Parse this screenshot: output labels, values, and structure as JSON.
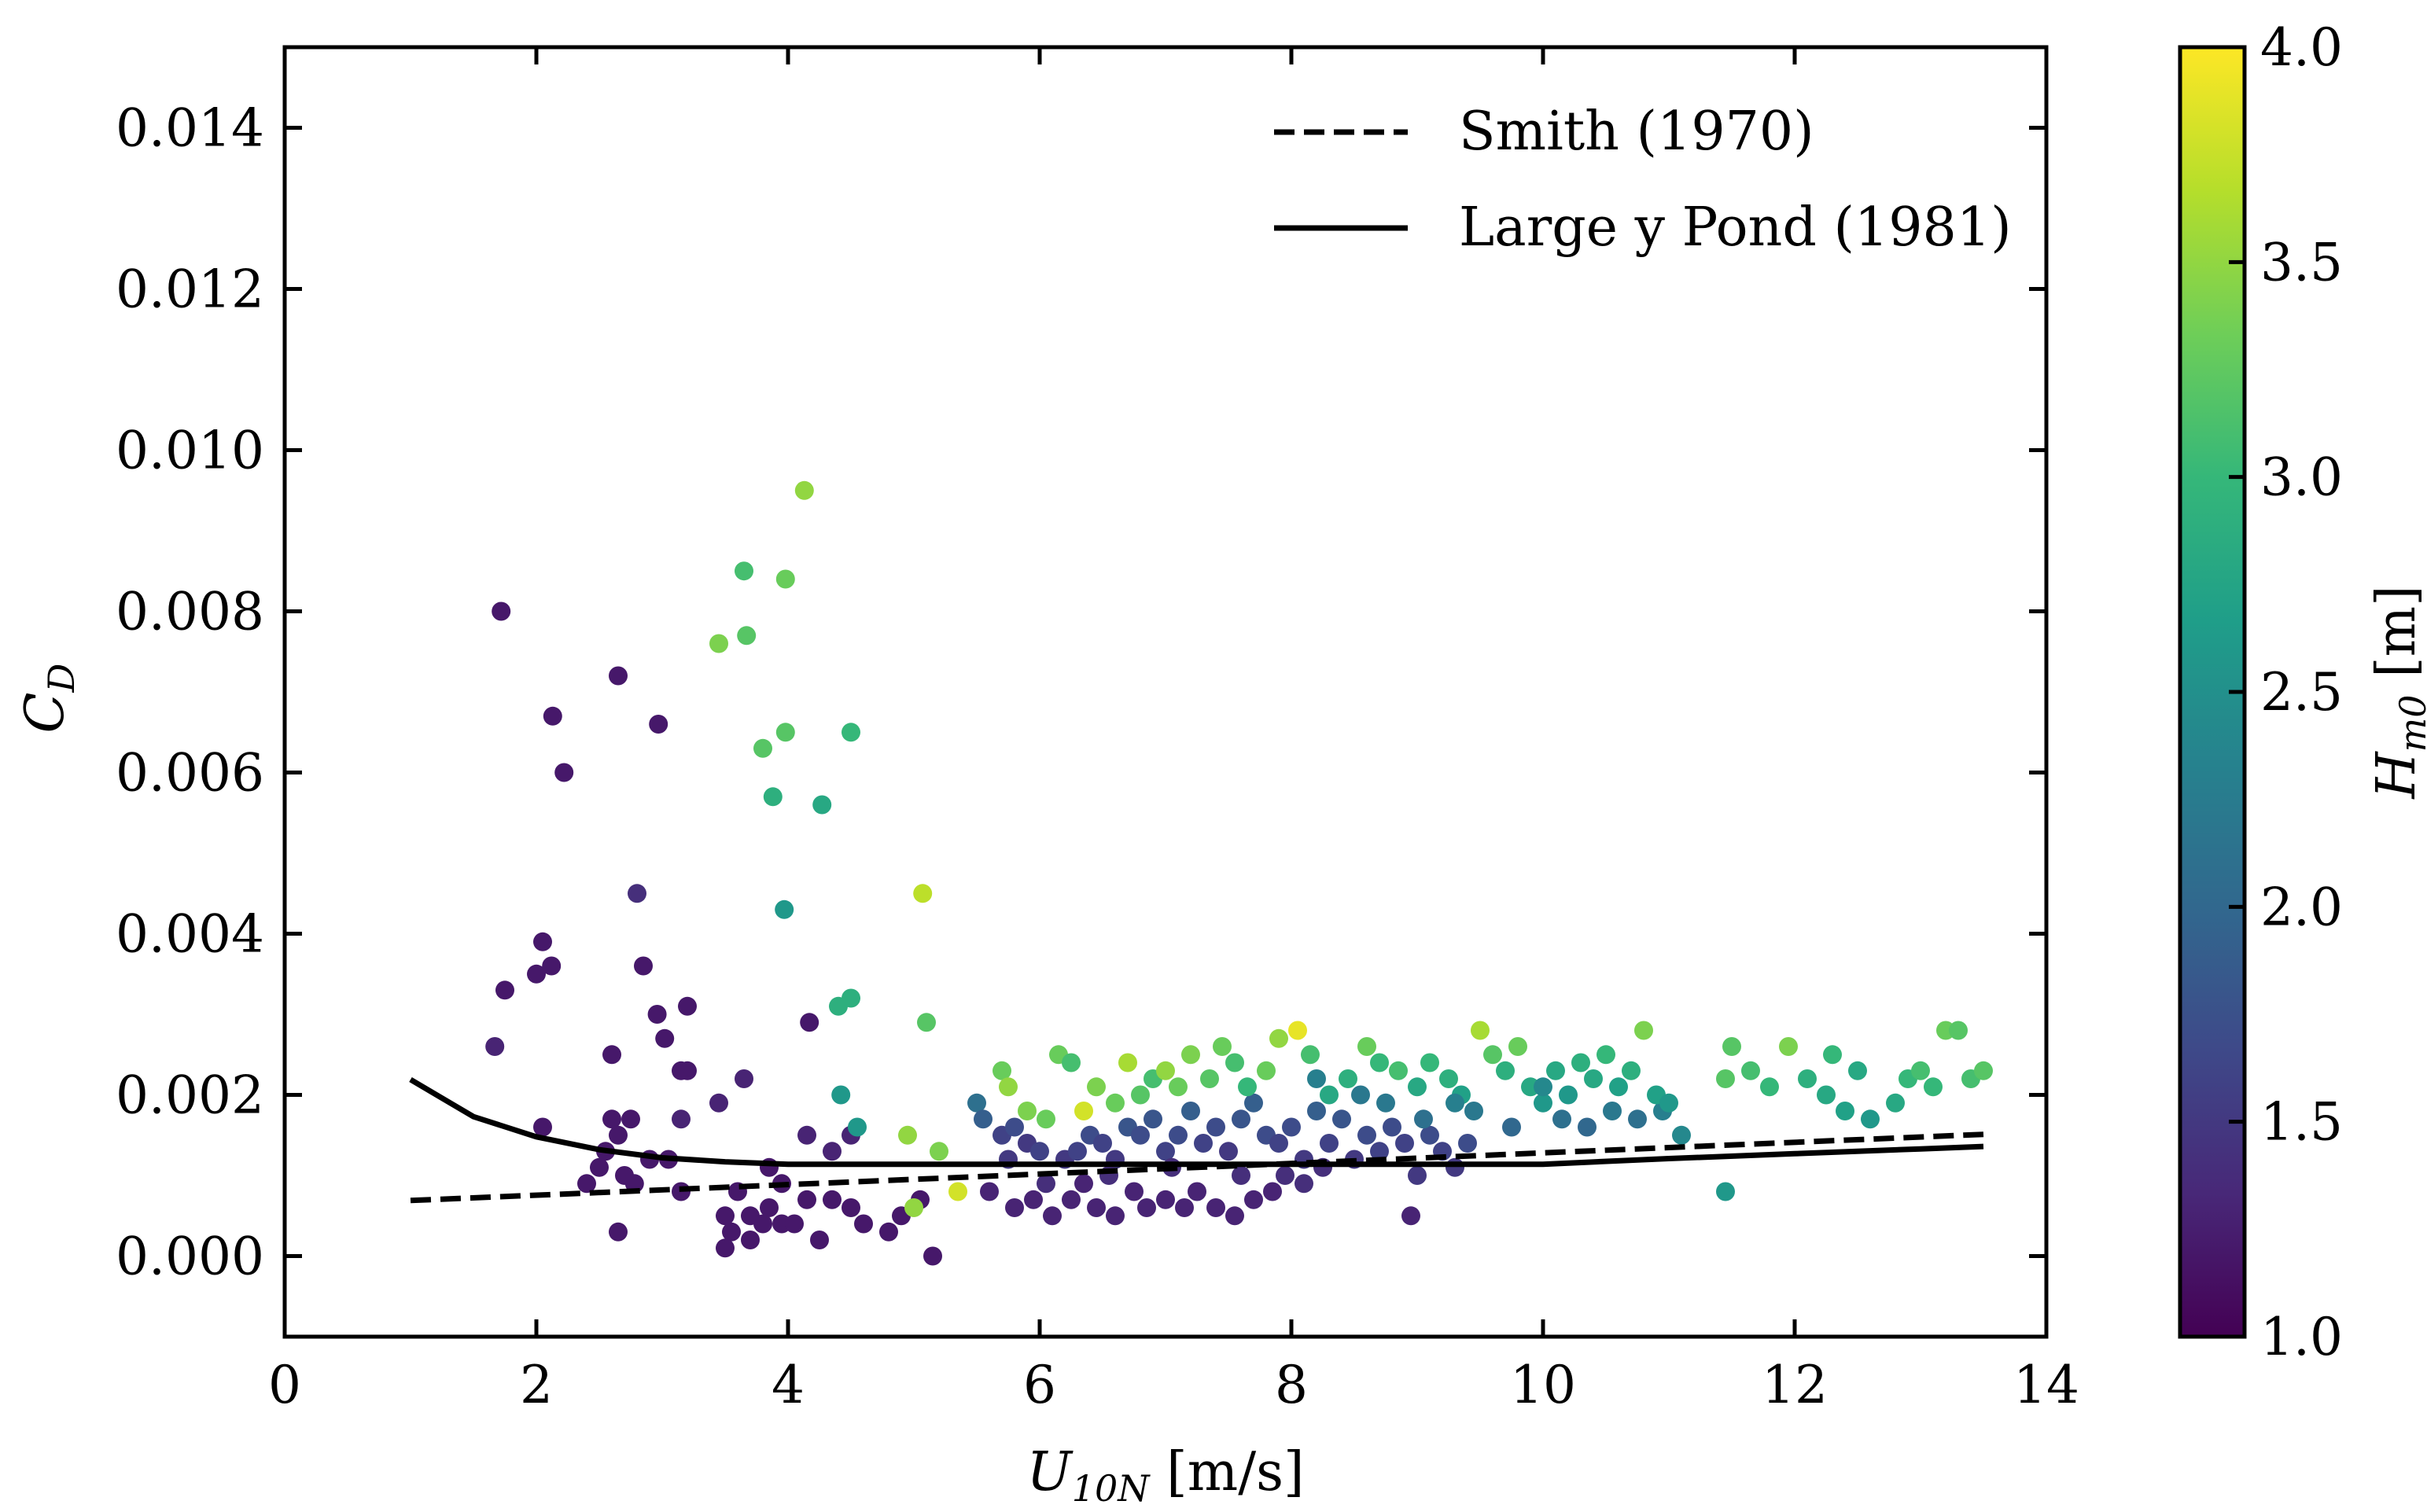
{
  "chart_data": {
    "type": "scatter",
    "title": "",
    "xlabel": {
      "main": "U",
      "sub": "10N",
      "unit": " [m/s]"
    },
    "ylabel": {
      "main": "C",
      "sub": "D"
    },
    "xlim": [
      0,
      14
    ],
    "ylim": [
      -0.001,
      0.015
    ],
    "xticks": [
      0,
      2,
      4,
      6,
      8,
      10,
      12,
      14
    ],
    "xtick_labels": [
      "0",
      "2",
      "4",
      "6",
      "8",
      "10",
      "12",
      "14"
    ],
    "yticks": [
      0.0,
      0.002,
      0.004,
      0.006,
      0.008,
      0.01,
      0.012,
      0.014
    ],
    "ytick_labels": [
      "0.000",
      "0.002",
      "0.004",
      "0.006",
      "0.008",
      "0.010",
      "0.012",
      "0.014"
    ],
    "grid": false,
    "legend_position": "top-right",
    "lines": [
      {
        "name": "Smith (1970)",
        "style": "dashed",
        "color": "#000000",
        "x": [
          1.0,
          13.5
        ],
        "y": [
          0.00069,
          0.00151
        ]
      },
      {
        "name": "Large y Pond (1981)",
        "style": "solid",
        "color": "#000000",
        "x": [
          1.0,
          1.5,
          2.0,
          2.5,
          3.0,
          3.5,
          4.0,
          5.0,
          6.0,
          7.0,
          8.0,
          9.0,
          10.0,
          11.0,
          12.0,
          13.0,
          13.5
        ],
        "y": [
          0.00219,
          0.00173,
          0.00148,
          0.00132,
          0.00122,
          0.00117,
          0.00114,
          0.00114,
          0.00114,
          0.00114,
          0.00114,
          0.00114,
          0.00114,
          0.00121,
          0.00127,
          0.00133,
          0.00136
        ]
      }
    ],
    "colorbar": {
      "label": {
        "main": "H",
        "sub": "m0",
        "unit": " [m]"
      },
      "range": [
        1.0,
        4.0
      ],
      "ticks": [
        1.0,
        1.5,
        2.0,
        2.5,
        3.0,
        3.5,
        4.0
      ],
      "tick_labels": [
        "1.0",
        "1.5",
        "2.0",
        "2.5",
        "3.0",
        "3.5",
        "4.0"
      ],
      "colormap": "viridis",
      "stops": [
        "#440154",
        "#482878",
        "#3e4989",
        "#31688e",
        "#26828e",
        "#1f9e89",
        "#35b779",
        "#6ece58",
        "#b5de2b",
        "#fde725"
      ]
    },
    "points": [
      [
        1.72,
        0.008,
        1.2
      ],
      [
        2.65,
        0.0072,
        1.2
      ],
      [
        2.13,
        0.0067,
        1.2
      ],
      [
        2.97,
        0.0066,
        1.2
      ],
      [
        2.22,
        0.006,
        1.2
      ],
      [
        2.8,
        0.0045,
        1.4
      ],
      [
        2.05,
        0.0039,
        1.2
      ],
      [
        2.0,
        0.0035,
        1.2
      ],
      [
        2.12,
        0.0036,
        1.2
      ],
      [
        2.85,
        0.0036,
        1.2
      ],
      [
        1.75,
        0.0033,
        1.2
      ],
      [
        3.2,
        0.0031,
        1.2
      ],
      [
        2.96,
        0.003,
        1.2
      ],
      [
        3.02,
        0.0027,
        1.2
      ],
      [
        3.2,
        0.0023,
        1.2
      ],
      [
        3.15,
        0.0023,
        1.2
      ],
      [
        1.67,
        0.0026,
        1.3
      ],
      [
        2.6,
        0.0025,
        1.2
      ],
      [
        3.65,
        0.0022,
        1.3
      ],
      [
        3.45,
        0.0019,
        1.3
      ],
      [
        4.17,
        0.0029,
        1.2
      ],
      [
        2.05,
        0.0016,
        1.2
      ],
      [
        2.6,
        0.0017,
        1.2
      ],
      [
        2.75,
        0.0017,
        1.2
      ],
      [
        3.15,
        0.0017,
        1.3
      ],
      [
        2.65,
        0.0015,
        1.2
      ],
      [
        2.55,
        0.0013,
        1.2
      ],
      [
        2.5,
        0.0011,
        1.2
      ],
      [
        2.9,
        0.0012,
        1.2
      ],
      [
        3.05,
        0.0012,
        1.2
      ],
      [
        2.4,
        0.0009,
        1.2
      ],
      [
        2.7,
        0.001,
        1.2
      ],
      [
        2.78,
        0.0009,
        1.2
      ],
      [
        3.15,
        0.0008,
        1.2
      ],
      [
        2.65,
        0.0003,
        1.2
      ],
      [
        3.5,
        0.0005,
        1.2
      ],
      [
        3.6,
        0.0008,
        1.2
      ],
      [
        3.85,
        0.0011,
        1.2
      ],
      [
        3.95,
        0.0009,
        1.2
      ],
      [
        3.85,
        0.0006,
        1.2
      ],
      [
        3.7,
        0.0005,
        1.2
      ],
      [
        3.55,
        0.0003,
        1.2
      ],
      [
        3.5,
        0.0001,
        1.2
      ],
      [
        3.7,
        0.0002,
        1.2
      ],
      [
        3.8,
        0.0004,
        1.2
      ],
      [
        3.95,
        0.0004,
        1.2
      ],
      [
        4.05,
        0.0004,
        1.2
      ],
      [
        4.15,
        0.0007,
        1.2
      ],
      [
        4.25,
        0.0002,
        1.2
      ],
      [
        4.35,
        0.0007,
        1.2
      ],
      [
        4.5,
        0.0006,
        1.2
      ],
      [
        4.6,
        0.0004,
        1.2
      ],
      [
        4.8,
        0.0003,
        1.2
      ],
      [
        4.9,
        0.0005,
        1.2
      ],
      [
        4.35,
        0.0013,
        1.3
      ],
      [
        4.5,
        0.0015,
        1.3
      ],
      [
        4.15,
        0.0015,
        1.3
      ],
      [
        5.15,
        0.0,
        1.2
      ],
      [
        5.05,
        0.0007,
        1.2
      ],
      [
        4.13,
        0.0095,
        3.5
      ],
      [
        3.65,
        0.0085,
        3.1
      ],
      [
        3.98,
        0.0084,
        3.3
      ],
      [
        3.45,
        0.0076,
        3.4
      ],
      [
        3.67,
        0.0077,
        3.2
      ],
      [
        3.98,
        0.0065,
        3.2
      ],
      [
        3.8,
        0.0063,
        3.2
      ],
      [
        4.5,
        0.0065,
        3.0
      ],
      [
        3.88,
        0.0057,
        2.9
      ],
      [
        4.27,
        0.0056,
        2.8
      ],
      [
        5.07,
        0.0045,
        3.7
      ],
      [
        3.97,
        0.0043,
        2.6
      ],
      [
        4.5,
        0.0032,
        2.9
      ],
      [
        4.4,
        0.0031,
        2.9
      ],
      [
        5.1,
        0.0029,
        3.2
      ],
      [
        4.42,
        0.002,
        2.6
      ],
      [
        4.55,
        0.0016,
        2.6
      ],
      [
        4.95,
        0.0015,
        3.5
      ],
      [
        5.2,
        0.0013,
        3.4
      ],
      [
        5.35,
        0.0008,
        3.8
      ],
      [
        5.0,
        0.0006,
        3.5
      ],
      [
        5.5,
        0.0019,
        2.1
      ],
      [
        5.55,
        0.0017,
        1.9
      ],
      [
        5.7,
        0.0015,
        1.6
      ],
      [
        5.8,
        0.0016,
        1.7
      ],
      [
        5.9,
        0.0014,
        1.5
      ],
      [
        5.75,
        0.0012,
        1.5
      ],
      [
        6.0,
        0.0013,
        1.6
      ],
      [
        6.2,
        0.0012,
        1.5
      ],
      [
        6.3,
        0.0013,
        1.6
      ],
      [
        6.4,
        0.0015,
        1.7
      ],
      [
        6.5,
        0.0014,
        1.6
      ],
      [
        6.6,
        0.0012,
        1.5
      ],
      [
        6.7,
        0.0016,
        1.8
      ],
      [
        6.8,
        0.0015,
        1.7
      ],
      [
        6.9,
        0.0017,
        1.8
      ],
      [
        7.0,
        0.0013,
        1.6
      ],
      [
        7.1,
        0.0015,
        1.7
      ],
      [
        7.2,
        0.0018,
        1.9
      ],
      [
        7.3,
        0.0014,
        1.6
      ],
      [
        7.4,
        0.0016,
        1.7
      ],
      [
        7.5,
        0.0013,
        1.5
      ],
      [
        7.6,
        0.0017,
        1.8
      ],
      [
        7.7,
        0.0019,
        1.9
      ],
      [
        7.8,
        0.0015,
        1.7
      ],
      [
        7.9,
        0.0014,
        1.6
      ],
      [
        8.0,
        0.0016,
        1.7
      ],
      [
        8.1,
        0.0012,
        1.5
      ],
      [
        8.2,
        0.0018,
        1.9
      ],
      [
        8.3,
        0.0014,
        1.6
      ],
      [
        8.4,
        0.0017,
        1.8
      ],
      [
        8.5,
        0.0012,
        1.5
      ],
      [
        8.6,
        0.0015,
        1.7
      ],
      [
        8.7,
        0.0013,
        1.6
      ],
      [
        8.8,
        0.0016,
        1.7
      ],
      [
        8.9,
        0.0014,
        1.6
      ],
      [
        9.0,
        0.001,
        1.5
      ],
      [
        9.1,
        0.0015,
        1.7
      ],
      [
        9.2,
        0.0013,
        1.6
      ],
      [
        9.3,
        0.0011,
        1.5
      ],
      [
        9.4,
        0.0014,
        1.7
      ],
      [
        8.95,
        0.0005,
        1.3
      ],
      [
        11.1,
        0.0015,
        2.4
      ],
      [
        10.95,
        0.0018,
        2.3
      ],
      [
        11.45,
        0.0008,
        2.6
      ],
      [
        5.6,
        0.0008,
        1.3
      ],
      [
        5.8,
        0.0006,
        1.3
      ],
      [
        5.95,
        0.0007,
        1.3
      ],
      [
        6.1,
        0.0005,
        1.3
      ],
      [
        6.25,
        0.0007,
        1.3
      ],
      [
        6.35,
        0.0009,
        1.3
      ],
      [
        6.45,
        0.0006,
        1.3
      ],
      [
        6.6,
        0.0005,
        1.3
      ],
      [
        6.75,
        0.0008,
        1.3
      ],
      [
        6.85,
        0.0006,
        1.3
      ],
      [
        7.0,
        0.0007,
        1.3
      ],
      [
        7.15,
        0.0006,
        1.3
      ],
      [
        7.25,
        0.0008,
        1.3
      ],
      [
        7.4,
        0.0006,
        1.3
      ],
      [
        7.55,
        0.0005,
        1.3
      ],
      [
        7.7,
        0.0007,
        1.3
      ],
      [
        7.85,
        0.0008,
        1.3
      ],
      [
        7.95,
        0.001,
        1.4
      ],
      [
        8.1,
        0.0009,
        1.4
      ],
      [
        8.25,
        0.0011,
        1.4
      ],
      [
        6.05,
        0.0009,
        1.4
      ],
      [
        6.55,
        0.001,
        1.4
      ],
      [
        7.05,
        0.0011,
        1.4
      ],
      [
        7.6,
        0.001,
        1.4
      ],
      [
        5.7,
        0.0023,
        3.3
      ],
      [
        5.75,
        0.0021,
        3.5
      ],
      [
        5.9,
        0.0018,
        3.4
      ],
      [
        6.05,
        0.0017,
        3.3
      ],
      [
        6.15,
        0.0025,
        3.3
      ],
      [
        6.25,
        0.0024,
        3.1
      ],
      [
        6.35,
        0.0018,
        3.8
      ],
      [
        6.45,
        0.0021,
        3.4
      ],
      [
        6.6,
        0.0019,
        3.3
      ],
      [
        6.7,
        0.0024,
        3.6
      ],
      [
        6.8,
        0.002,
        3.2
      ],
      [
        6.9,
        0.0022,
        3.1
      ],
      [
        7.0,
        0.0023,
        3.5
      ],
      [
        7.1,
        0.0021,
        3.3
      ],
      [
        7.2,
        0.0025,
        3.4
      ],
      [
        7.35,
        0.0022,
        3.2
      ],
      [
        7.45,
        0.0026,
        3.3
      ],
      [
        7.55,
        0.0024,
        3.1
      ],
      [
        7.65,
        0.0021,
        3.0
      ],
      [
        7.8,
        0.0023,
        3.3
      ],
      [
        7.9,
        0.0027,
        3.5
      ],
      [
        8.05,
        0.0028,
        3.9
      ],
      [
        8.15,
        0.0025,
        3.1
      ],
      [
        8.3,
        0.002,
        2.8
      ],
      [
        8.45,
        0.0022,
        2.9
      ],
      [
        8.6,
        0.0026,
        3.3
      ],
      [
        8.7,
        0.0024,
        3.0
      ],
      [
        8.85,
        0.0023,
        3.1
      ],
      [
        9.0,
        0.0021,
        2.8
      ],
      [
        9.1,
        0.0024,
        3.0
      ],
      [
        9.25,
        0.0022,
        2.9
      ],
      [
        9.35,
        0.002,
        2.7
      ],
      [
        9.5,
        0.0028,
        3.6
      ],
      [
        9.6,
        0.0025,
        3.2
      ],
      [
        9.7,
        0.0023,
        2.9
      ],
      [
        9.8,
        0.0026,
        3.3
      ],
      [
        9.9,
        0.0021,
        2.8
      ],
      [
        10.0,
        0.0019,
        2.6
      ],
      [
        10.1,
        0.0023,
        2.8
      ],
      [
        10.2,
        0.002,
        2.6
      ],
      [
        10.3,
        0.0024,
        2.9
      ],
      [
        10.4,
        0.0022,
        2.8
      ],
      [
        10.5,
        0.0025,
        3.0
      ],
      [
        10.6,
        0.0021,
        2.7
      ],
      [
        10.7,
        0.0023,
        2.9
      ],
      [
        10.8,
        0.0028,
        3.4
      ],
      [
        10.9,
        0.002,
        2.7
      ],
      [
        11.0,
        0.0019,
        2.6
      ],
      [
        11.45,
        0.0022,
        3.2
      ],
      [
        11.5,
        0.0026,
        3.2
      ],
      [
        11.65,
        0.0023,
        3.1
      ],
      [
        11.8,
        0.0021,
        3.0
      ],
      [
        11.95,
        0.0026,
        3.4
      ],
      [
        12.1,
        0.0022,
        2.9
      ],
      [
        12.25,
        0.002,
        2.8
      ],
      [
        12.3,
        0.0025,
        3.0
      ],
      [
        12.4,
        0.0018,
        2.7
      ],
      [
        12.5,
        0.0023,
        2.8
      ],
      [
        12.6,
        0.0017,
        2.6
      ],
      [
        12.8,
        0.0019,
        2.8
      ],
      [
        12.9,
        0.0022,
        3.0
      ],
      [
        13.0,
        0.0023,
        3.1
      ],
      [
        13.1,
        0.0021,
        3.0
      ],
      [
        13.2,
        0.0028,
        3.3
      ],
      [
        13.3,
        0.0028,
        3.2
      ],
      [
        13.4,
        0.0022,
        3.1
      ],
      [
        13.5,
        0.0023,
        3.2
      ],
      [
        8.75,
        0.0019,
        2.2
      ],
      [
        9.05,
        0.0017,
        2.1
      ],
      [
        9.45,
        0.0018,
        2.2
      ],
      [
        9.75,
        0.0016,
        2.0
      ],
      [
        10.15,
        0.0017,
        2.1
      ],
      [
        10.35,
        0.0016,
        2.0
      ],
      [
        10.55,
        0.0018,
        2.2
      ],
      [
        10.75,
        0.0017,
        2.1
      ],
      [
        8.2,
        0.0022,
        2.3
      ],
      [
        8.55,
        0.002,
        2.2
      ],
      [
        9.3,
        0.0019,
        2.3
      ],
      [
        10.0,
        0.0021,
        2.4
      ]
    ]
  }
}
